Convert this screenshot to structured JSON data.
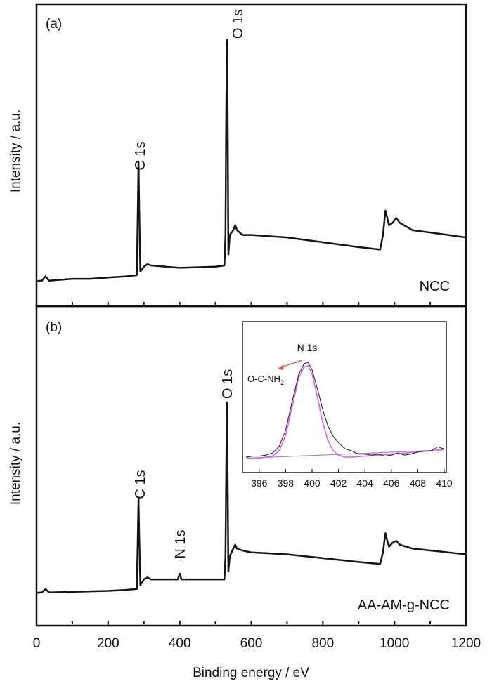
{
  "figure": {
    "xlabel": "Binding energy / eV",
    "xticks": [
      "0",
      "200",
      "400",
      "600",
      "800",
      "1000",
      "1200"
    ]
  },
  "chart_data": [
    {
      "type": "line",
      "panel": "(a)",
      "sample": "NCC",
      "xlabel": "Binding energy / eV",
      "ylabel": "Intensity / a.u.",
      "xlim": [
        0,
        1200
      ],
      "ylim": [
        0,
        1
      ],
      "peaks": [
        {
          "label": "C 1s",
          "x": 285
        },
        {
          "label": "O 1s",
          "x": 532
        }
      ],
      "series": [
        {
          "x": [
            0,
            15,
            25,
            35,
            100,
            150,
            200,
            250,
            280,
            283,
            285,
            287,
            290,
            300,
            310,
            320,
            400,
            500,
            525,
            528,
            530,
            532,
            534,
            536,
            540,
            550,
            555,
            560,
            575,
            600,
            700,
            800,
            900,
            960,
            968,
            975,
            980,
            985,
            995,
            1005,
            1015,
            1050,
            1100,
            1150,
            1200
          ],
          "y": [
            0.01,
            0.012,
            0.03,
            0.012,
            0.02,
            0.02,
            0.025,
            0.03,
            0.035,
            0.3,
            0.5,
            0.3,
            0.05,
            0.07,
            0.08,
            0.075,
            0.065,
            0.07,
            0.075,
            0.2,
            0.7,
            1.0,
            0.7,
            0.12,
            0.2,
            0.22,
            0.24,
            0.22,
            0.2,
            0.2,
            0.19,
            0.17,
            0.15,
            0.14,
            0.2,
            0.3,
            0.27,
            0.24,
            0.25,
            0.27,
            0.25,
            0.22,
            0.21,
            0.2,
            0.19
          ]
        }
      ]
    },
    {
      "type": "line",
      "panel": "(b)",
      "sample": "AA-AM-g-NCC",
      "xlabel": "Binding energy / eV",
      "ylabel": "Intensity / a.u.",
      "xlim": [
        0,
        1200
      ],
      "ylim": [
        0,
        1
      ],
      "peaks": [
        {
          "label": "C 1s",
          "x": 285
        },
        {
          "label": "N 1s",
          "x": 400
        },
        {
          "label": "O 1s",
          "x": 532
        }
      ],
      "series": [
        {
          "x": [
            0,
            15,
            25,
            35,
            100,
            150,
            200,
            250,
            280,
            283,
            285,
            287,
            290,
            300,
            310,
            320,
            395,
            400,
            405,
            500,
            525,
            528,
            530,
            532,
            534,
            536,
            540,
            550,
            555,
            560,
            575,
            600,
            700,
            800,
            900,
            960,
            968,
            975,
            980,
            985,
            995,
            1005,
            1015,
            1050,
            1100,
            1150,
            1200
          ],
          "y": [
            0.01,
            0.012,
            0.03,
            0.012,
            0.015,
            0.018,
            0.02,
            0.025,
            0.03,
            0.3,
            0.5,
            0.3,
            0.05,
            0.08,
            0.09,
            0.08,
            0.08,
            0.11,
            0.08,
            0.08,
            0.08,
            0.2,
            0.65,
            1.0,
            0.6,
            0.12,
            0.2,
            0.24,
            0.26,
            0.24,
            0.23,
            0.22,
            0.21,
            0.19,
            0.17,
            0.16,
            0.22,
            0.32,
            0.28,
            0.25,
            0.27,
            0.28,
            0.26,
            0.24,
            0.23,
            0.22,
            0.21
          ]
        }
      ]
    },
    {
      "type": "line",
      "panel": "inset",
      "xlim": [
        395,
        410
      ],
      "ylim": [
        0,
        1
      ],
      "xticks": [
        396,
        398,
        400,
        402,
        404,
        406,
        408,
        410
      ],
      "annotations": [
        "N 1s",
        "O-C-NH",
        "2"
      ],
      "colors": {
        "raw": "#2a2a2a",
        "fit": "#d86ad8",
        "baseline": "#9a7fd6",
        "arrow": "#d9534f"
      },
      "series": [
        {
          "name": "raw",
          "x": [
            395,
            395.5,
            396,
            396.5,
            397,
            397.5,
            398,
            398.5,
            399,
            399.4,
            399.7,
            400,
            400.4,
            400.8,
            401.2,
            401.6,
            402,
            402.5,
            403,
            403.5,
            404,
            404.5,
            405,
            405.5,
            406,
            406.5,
            407,
            407.5,
            408,
            408.5,
            409,
            409.5,
            410
          ],
          "y": [
            0.06,
            0.07,
            0.07,
            0.08,
            0.1,
            0.16,
            0.32,
            0.6,
            0.86,
            0.96,
            0.97,
            0.9,
            0.72,
            0.52,
            0.36,
            0.26,
            0.2,
            0.14,
            0.12,
            0.09,
            0.09,
            0.08,
            0.09,
            0.07,
            0.08,
            0.1,
            0.08,
            0.09,
            0.11,
            0.12,
            0.12,
            0.16,
            0.14
          ]
        },
        {
          "name": "fit",
          "x": [
            395,
            396,
            397,
            397.5,
            398,
            398.5,
            399,
            399.4,
            399.7,
            400,
            400.4,
            400.8,
            401.2,
            401.6,
            402,
            402.5,
            403,
            404,
            405,
            406,
            407,
            408,
            409,
            410
          ],
          "y": [
            0.05,
            0.05,
            0.07,
            0.12,
            0.27,
            0.55,
            0.83,
            0.93,
            0.94,
            0.86,
            0.64,
            0.4,
            0.22,
            0.12,
            0.08,
            0.06,
            0.06,
            0.07,
            0.08,
            0.09,
            0.1,
            0.11,
            0.12,
            0.14
          ]
        },
        {
          "name": "baseline",
          "x": [
            395,
            410
          ],
          "y": [
            0.05,
            0.13
          ]
        }
      ]
    }
  ]
}
